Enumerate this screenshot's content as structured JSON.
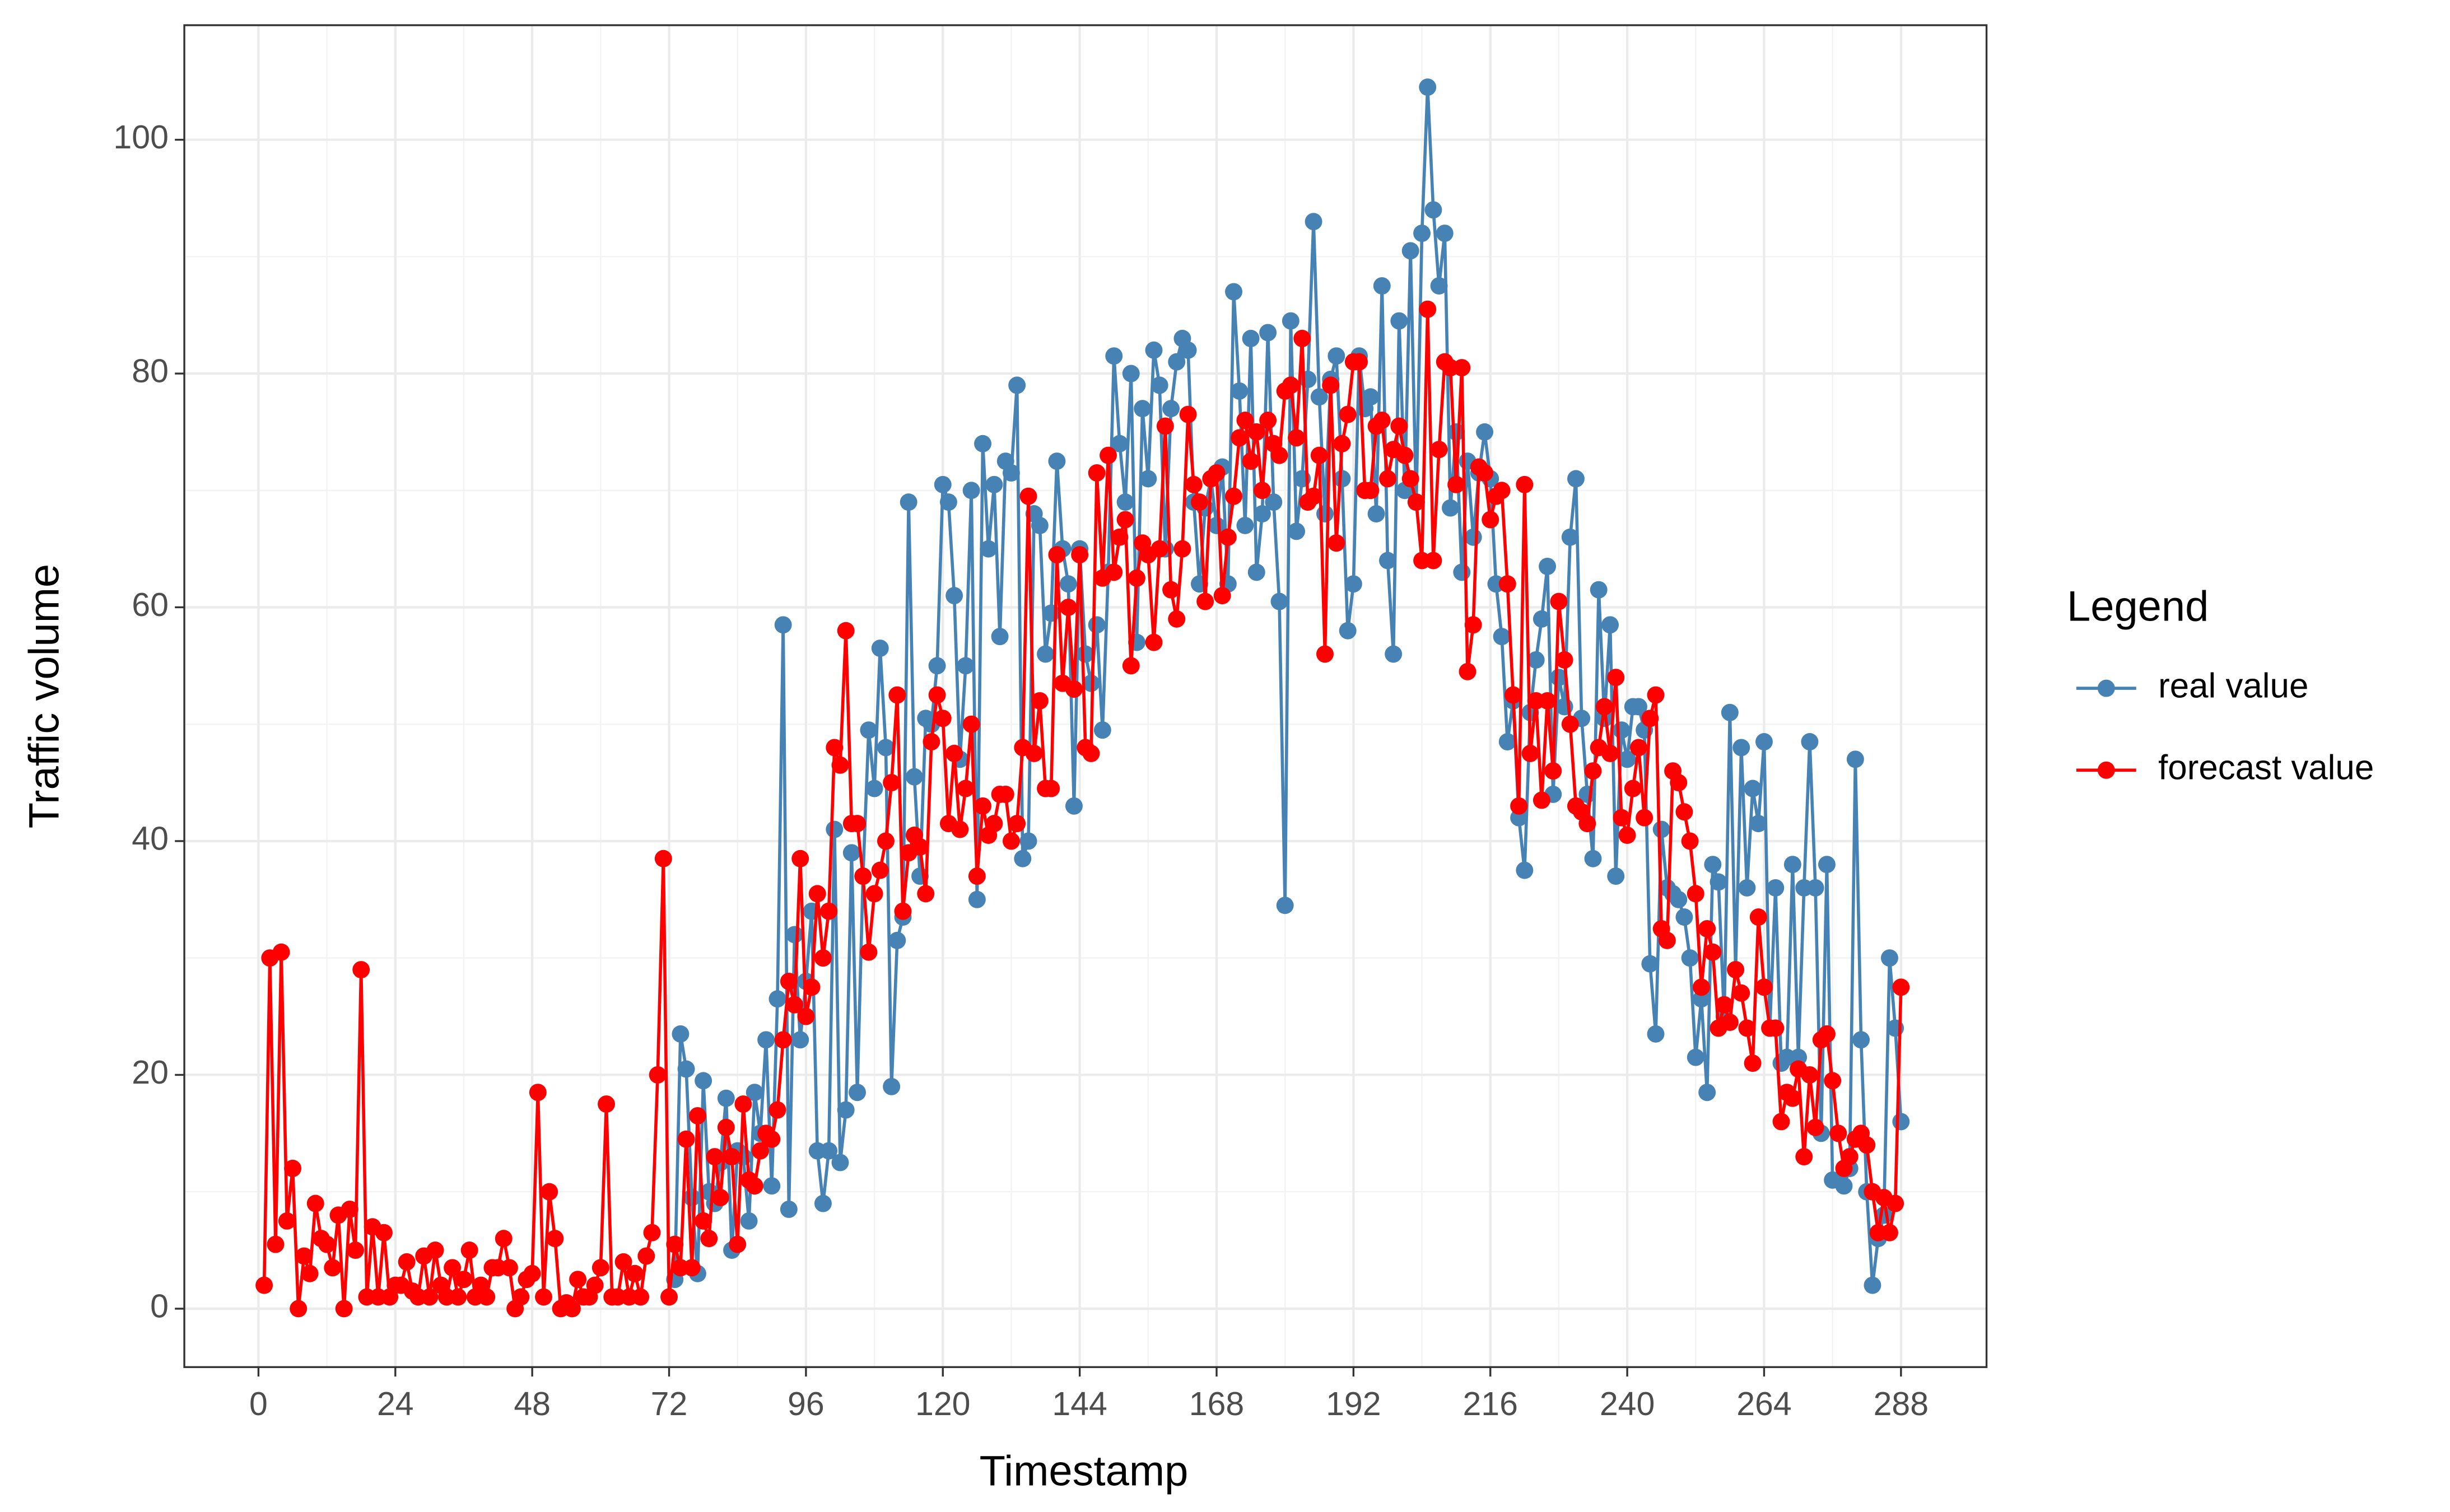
{
  "chart_data": {
    "type": "line",
    "x_label": "Timestamp",
    "y_label": "Traffic volume",
    "legend_title": "Legend",
    "legend_position": "right",
    "grid": true,
    "minor_grid": true,
    "xlim": [
      -13,
      303
    ],
    "ylim": [
      -5,
      109.8
    ],
    "xticks": [
      0,
      24,
      48,
      72,
      96,
      120,
      144,
      168,
      192,
      216,
      240,
      264,
      288
    ],
    "yticks": [
      0,
      20,
      40,
      60,
      80,
      100
    ],
    "x": [
      1,
      2,
      3,
      4,
      5,
      6,
      7,
      8,
      9,
      10,
      11,
      12,
      13,
      14,
      15,
      16,
      17,
      18,
      19,
      20,
      21,
      22,
      23,
      24,
      25,
      26,
      27,
      28,
      29,
      30,
      31,
      32,
      33,
      34,
      35,
      36,
      37,
      38,
      39,
      40,
      41,
      42,
      43,
      44,
      45,
      46,
      47,
      48,
      49,
      50,
      51,
      52,
      53,
      54,
      55,
      56,
      57,
      58,
      59,
      60,
      61,
      62,
      63,
      64,
      65,
      66,
      67,
      68,
      69,
      70,
      71,
      72,
      73,
      74,
      75,
      76,
      77,
      78,
      79,
      80,
      81,
      82,
      83,
      84,
      85,
      86,
      87,
      88,
      89,
      90,
      91,
      92,
      93,
      94,
      95,
      96,
      97,
      98,
      99,
      100,
      101,
      102,
      103,
      104,
      105,
      106,
      107,
      108,
      109,
      110,
      111,
      112,
      113,
      114,
      115,
      116,
      117,
      118,
      119,
      120,
      121,
      122,
      123,
      124,
      125,
      126,
      127,
      128,
      129,
      130,
      131,
      132,
      133,
      134,
      135,
      136,
      137,
      138,
      139,
      140,
      141,
      142,
      143,
      144,
      145,
      146,
      147,
      148,
      149,
      150,
      151,
      152,
      153,
      154,
      155,
      156,
      157,
      158,
      159,
      160,
      161,
      162,
      163,
      164,
      165,
      166,
      167,
      168,
      169,
      170,
      171,
      172,
      173,
      174,
      175,
      176,
      177,
      178,
      179,
      180,
      181,
      182,
      183,
      184,
      185,
      186,
      187,
      188,
      189,
      190,
      191,
      192,
      193,
      194,
      195,
      196,
      197,
      198,
      199,
      200,
      201,
      202,
      203,
      204,
      205,
      206,
      207,
      208,
      209,
      210,
      211,
      212,
      213,
      214,
      215,
      216,
      217,
      218,
      219,
      220,
      221,
      222,
      223,
      224,
      225,
      226,
      227,
      228,
      229,
      230,
      231,
      232,
      233,
      234,
      235,
      236,
      237,
      238,
      239,
      240,
      241,
      242,
      243,
      244,
      245,
      246,
      247,
      248,
      249,
      250,
      251,
      252,
      253,
      254,
      255,
      256,
      257,
      258,
      259,
      260,
      261,
      262,
      263,
      264,
      265,
      266,
      267,
      268,
      269,
      270,
      271,
      272,
      273,
      274,
      275,
      276,
      277,
      278,
      279,
      280,
      281,
      282,
      283,
      284,
      285,
      286,
      287,
      288
    ],
    "series": [
      {
        "name": "real value",
        "color": "#4682b4",
        "values": [
          null,
          null,
          null,
          null,
          null,
          null,
          null,
          null,
          null,
          null,
          null,
          null,
          null,
          null,
          null,
          null,
          null,
          null,
          null,
          null,
          null,
          null,
          null,
          null,
          null,
          null,
          null,
          null,
          null,
          null,
          null,
          null,
          null,
          null,
          null,
          null,
          null,
          null,
          null,
          null,
          null,
          null,
          null,
          null,
          null,
          null,
          null,
          null,
          null,
          null,
          null,
          null,
          null,
          null,
          null,
          null,
          null,
          null,
          null,
          null,
          null,
          null,
          null,
          null,
          null,
          null,
          null,
          null,
          null,
          null,
          null,
          null,
          2.5,
          23.5,
          20.5,
          9.5,
          3,
          19.5,
          10,
          9,
          12.5,
          18,
          5,
          13.5,
          13,
          7.5,
          18.5,
          15,
          23,
          10.5,
          26.5,
          58.5,
          8.5,
          32,
          23,
          28,
          34,
          13.5,
          9,
          13.5,
          41,
          12.5,
          17,
          39,
          18.5,
          37,
          49.5,
          44.5,
          56.5,
          48,
          19,
          31.5,
          33.5,
          69,
          45.5,
          37,
          50.5,
          50,
          55,
          70.5,
          69,
          61,
          47,
          55,
          70,
          35,
          74,
          65,
          70.5,
          57.5,
          72.5,
          71.5,
          79,
          38.5,
          40,
          68,
          67,
          56,
          59.5,
          72.5,
          65,
          62,
          43,
          65,
          56,
          53.5,
          58.5,
          49.5,
          63,
          81.5,
          74,
          69,
          80,
          57,
          77,
          71,
          82,
          79,
          65,
          77,
          81,
          83,
          82,
          69,
          62,
          68.5,
          71,
          67,
          72,
          62,
          87,
          78.5,
          67,
          83,
          63,
          68,
          83.5,
          69,
          60.5,
          34.5,
          84.5,
          66.5,
          71,
          79.5,
          93,
          78,
          68,
          79.5,
          81.5,
          71,
          58,
          62,
          81.5,
          77,
          78,
          68,
          87.5,
          64,
          56,
          84.5,
          70,
          90.5,
          69,
          92,
          104.5,
          94,
          87.5,
          92,
          68.5,
          75,
          63,
          72.5,
          66,
          71.5,
          75,
          71,
          62,
          57.5,
          48.5,
          52,
          42,
          37.5,
          51,
          55.5,
          59,
          63.5,
          44,
          54,
          51.5,
          66,
          71,
          50.5,
          44,
          38.5,
          61.5,
          50.5,
          58.5,
          37,
          49.5,
          47,
          51.5,
          51.5,
          49.5,
          29.5,
          23.5,
          41,
          36,
          35.5,
          35,
          33.5,
          30,
          21.5,
          26.5,
          18.5,
          38,
          36.5,
          25,
          51,
          29,
          48,
          36,
          44.5,
          41.5,
          48.5,
          24,
          36,
          21,
          21.5,
          38,
          21.5,
          36,
          48.5,
          36,
          15,
          38,
          11,
          11,
          10.5,
          12,
          47,
          23,
          10,
          2,
          6,
          8,
          30,
          24,
          16
        ]
      },
      {
        "name": "forecast value",
        "color": "#ff0000",
        "values": [
          2,
          30,
          5.5,
          30.5,
          7.5,
          12,
          0,
          4.5,
          3,
          9,
          6,
          5.5,
          3.5,
          8,
          0,
          8.5,
          5,
          29,
          1,
          7,
          1,
          6.5,
          1,
          2,
          2,
          4,
          1.5,
          1,
          4.5,
          1,
          5,
          2,
          1,
          3.5,
          1,
          2.5,
          5,
          1,
          2,
          1,
          3.5,
          3.5,
          6,
          3.5,
          0,
          1,
          2.5,
          3,
          18.5,
          1,
          10,
          6,
          0,
          0.5,
          0,
          2.5,
          1,
          1,
          2,
          3.5,
          17.5,
          1,
          1,
          4,
          1,
          3,
          1,
          4.5,
          6.5,
          20,
          38.5,
          1,
          5.5,
          3.5,
          14.5,
          3.5,
          16.5,
          7.5,
          6,
          13,
          9.5,
          15.5,
          13,
          5.5,
          17.5,
          11,
          10.5,
          13.5,
          15,
          14.5,
          17,
          23,
          28,
          26,
          38.5,
          25,
          27.5,
          35.5,
          30,
          34,
          48,
          46.5,
          58,
          41.5,
          41.5,
          37,
          30.5,
          35.5,
          37.5,
          40,
          45,
          52.5,
          34,
          39,
          40.5,
          39.5,
          35.5,
          48.5,
          52.5,
          50.5,
          41.5,
          47.5,
          41,
          44.5,
          50,
          37,
          43,
          40.5,
          41.5,
          44,
          44,
          40,
          41.5,
          48,
          69.5,
          47.5,
          52,
          44.5,
          44.5,
          64.5,
          53.5,
          60,
          53,
          64.5,
          48,
          47.5,
          71.5,
          62.5,
          73,
          63,
          66,
          67.5,
          55,
          62.5,
          65.5,
          64.5,
          57,
          65,
          75.5,
          61.5,
          59,
          65,
          76.5,
          70.5,
          69,
          60.5,
          71,
          71.5,
          61,
          66,
          69.5,
          74.5,
          76,
          72.5,
          75,
          70,
          76,
          74,
          73,
          78.5,
          79,
          74.5,
          83,
          69,
          69.5,
          73,
          56,
          79,
          65.5,
          74,
          76.5,
          81,
          81,
          70,
          70,
          75.5,
          76,
          71,
          73.5,
          75.5,
          73,
          71,
          69,
          64,
          85.5,
          64,
          73.5,
          81,
          80.5,
          70.5,
          80.5,
          54.5,
          58.5,
          72,
          71.5,
          67.5,
          69.5,
          70,
          62,
          52.5,
          43,
          70.5,
          47.5,
          52,
          43.5,
          52,
          46,
          60.5,
          55.5,
          50,
          43,
          42.5,
          41.5,
          46,
          48,
          51.5,
          47.5,
          54,
          42,
          40.5,
          44.5,
          48,
          42,
          50.5,
          52.5,
          32.5,
          31.5,
          46,
          45,
          42.5,
          40,
          35.5,
          27.5,
          32.5,
          30.5,
          24,
          26,
          24.5,
          29,
          27,
          24,
          21,
          33.5,
          27.5,
          24,
          24,
          16,
          18.5,
          18,
          20.5,
          13,
          20,
          15.5,
          23,
          23.5,
          19.5,
          15,
          12,
          13,
          14.5,
          15,
          14,
          10,
          6.5,
          9.5,
          6.5,
          9,
          27.5
        ]
      }
    ]
  }
}
